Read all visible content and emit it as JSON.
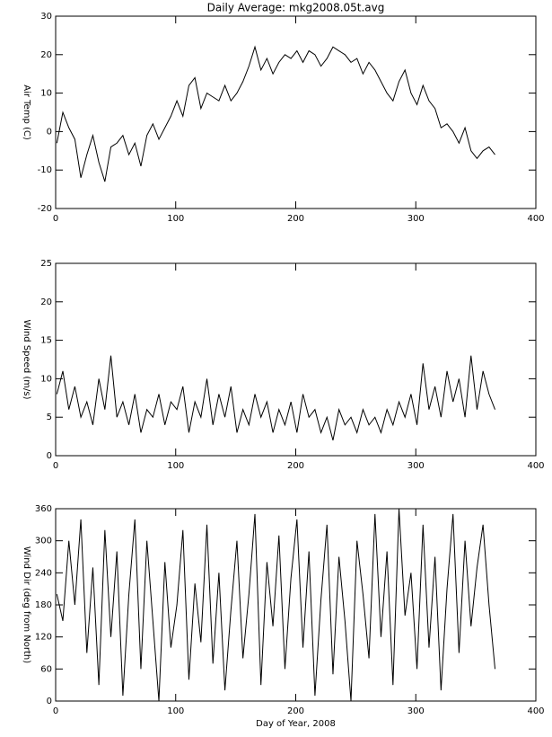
{
  "chart_data": [
    {
      "type": "line",
      "title": "Daily Average: mkg2008.05t.avg",
      "y_label": "Air Temp (C)",
      "x": [
        1,
        6,
        11,
        16,
        21,
        26,
        31,
        36,
        41,
        46,
        51,
        56,
        61,
        66,
        71,
        76,
        81,
        86,
        91,
        96,
        101,
        106,
        111,
        116,
        121,
        126,
        131,
        136,
        141,
        146,
        151,
        156,
        161,
        166,
        171,
        176,
        181,
        186,
        191,
        196,
        201,
        206,
        211,
        216,
        221,
        226,
        231,
        236,
        241,
        246,
        251,
        256,
        261,
        266,
        271,
        276,
        281,
        286,
        291,
        296,
        301,
        306,
        311,
        316,
        321,
        326,
        331,
        336,
        341,
        346,
        351,
        356,
        361,
        366
      ],
      "values": [
        -3,
        5,
        1,
        -2,
        -12,
        -6,
        -1,
        -8,
        -13,
        -4,
        -3,
        -1,
        -6,
        -3,
        -9,
        -1,
        2,
        -2,
        1,
        4,
        8,
        4,
        12,
        14,
        6,
        10,
        9,
        8,
        12,
        8,
        10,
        13,
        17,
        22,
        16,
        19,
        15,
        18,
        20,
        19,
        21,
        18,
        21,
        20,
        17,
        19,
        22,
        21,
        20,
        18,
        19,
        15,
        18,
        16,
        13,
        10,
        8,
        13,
        16,
        10,
        7,
        12,
        8,
        6,
        1,
        2,
        0,
        -3,
        1,
        -5,
        -7,
        -5,
        -4,
        -6
      ],
      "color": "#000000",
      "xlim": [
        0,
        400
      ],
      "xticks": [
        0,
        100,
        200,
        300,
        400
      ],
      "ylim": [
        -20,
        30
      ],
      "yticks": [
        -20,
        -10,
        0,
        10,
        20,
        30
      ]
    },
    {
      "type": "line",
      "y_label": "Wind Speed (m/s)",
      "x": [
        1,
        6,
        11,
        16,
        21,
        26,
        31,
        36,
        41,
        46,
        51,
        56,
        61,
        66,
        71,
        76,
        81,
        86,
        91,
        96,
        101,
        106,
        111,
        116,
        121,
        126,
        131,
        136,
        141,
        146,
        151,
        156,
        161,
        166,
        171,
        176,
        181,
        186,
        191,
        196,
        201,
        206,
        211,
        216,
        221,
        226,
        231,
        236,
        241,
        246,
        251,
        256,
        261,
        266,
        271,
        276,
        281,
        286,
        291,
        296,
        301,
        306,
        311,
        316,
        321,
        326,
        331,
        336,
        341,
        346,
        351,
        356,
        361,
        366
      ],
      "values": [
        8,
        11,
        6,
        9,
        5,
        7,
        4,
        10,
        6,
        13,
        5,
        7,
        4,
        8,
        3,
        6,
        5,
        8,
        4,
        7,
        6,
        9,
        3,
        7,
        5,
        10,
        4,
        8,
        5,
        9,
        3,
        6,
        4,
        8,
        5,
        7,
        3,
        6,
        4,
        7,
        3,
        8,
        5,
        6,
        3,
        5,
        2,
        6,
        4,
        5,
        3,
        6,
        4,
        5,
        3,
        6,
        4,
        7,
        5,
        8,
        4,
        12,
        6,
        9,
        5,
        11,
        7,
        10,
        5,
        13,
        6,
        11,
        8,
        6
      ],
      "color": "#000000",
      "xlim": [
        0,
        400
      ],
      "xticks": [
        0,
        100,
        200,
        300,
        400
      ],
      "ylim": [
        0,
        25
      ],
      "yticks": [
        0,
        5,
        10,
        15,
        20,
        25
      ]
    },
    {
      "type": "line",
      "y_label": "Wind Dir (deg from North)",
      "x_label": "Day of Year, 2008",
      "x": [
        1,
        6,
        11,
        16,
        21,
        26,
        31,
        36,
        41,
        46,
        51,
        56,
        61,
        66,
        71,
        76,
        81,
        86,
        91,
        96,
        101,
        106,
        111,
        116,
        121,
        126,
        131,
        136,
        141,
        146,
        151,
        156,
        161,
        166,
        171,
        176,
        181,
        186,
        191,
        196,
        201,
        206,
        211,
        216,
        221,
        226,
        231,
        236,
        241,
        246,
        251,
        256,
        261,
        266,
        271,
        276,
        281,
        286,
        291,
        296,
        301,
        306,
        311,
        316,
        321,
        326,
        331,
        336,
        341,
        346,
        351,
        356,
        361,
        366
      ],
      "values": [
        200,
        150,
        300,
        180,
        340,
        90,
        250,
        30,
        320,
        120,
        280,
        10,
        200,
        340,
        60,
        300,
        150,
        0,
        260,
        100,
        180,
        320,
        40,
        220,
        110,
        330,
        70,
        240,
        20,
        170,
        300,
        80,
        200,
        350,
        30,
        260,
        140,
        310,
        60,
        230,
        340,
        100,
        280,
        10,
        190,
        330,
        50,
        270,
        150,
        0,
        300,
        200,
        80,
        350,
        120,
        280,
        30,
        360,
        160,
        240,
        60,
        330,
        100,
        270,
        20,
        210,
        350,
        90,
        300,
        140,
        250,
        330,
        180,
        60
      ],
      "color": "#000000",
      "xlim": [
        0,
        400
      ],
      "xticks": [
        0,
        100,
        200,
        300,
        400
      ],
      "ylim": [
        0,
        360
      ],
      "yticks": [
        0,
        60,
        120,
        180,
        240,
        300,
        360
      ]
    }
  ]
}
